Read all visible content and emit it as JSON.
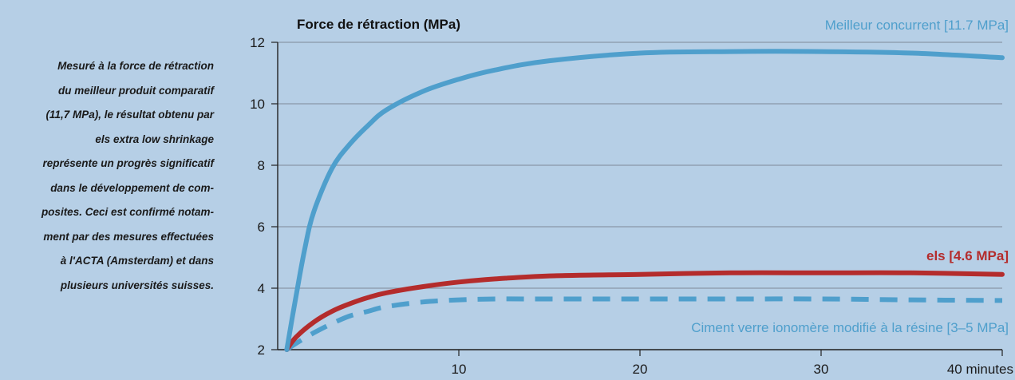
{
  "sidebar": {
    "lines": [
      "Mesuré à la force de rétraction",
      "du meilleur produit comparatif",
      "(11,7 MPa), le résultat obtenu par",
      "els extra low shrinkage",
      "représente un progrès significatif",
      "dans le développement de com-",
      "posites. Ceci est confirmé notam-",
      "ment par des mesures effectuées",
      "à l'ACTA (Amsterdam) et dans",
      "plusieurs universités suisses."
    ]
  },
  "chart_data": {
    "type": "line",
    "title": "",
    "ylabel": "Force de rétraction  (MPa)",
    "xlabel": "minutes",
    "xlim": [
      0,
      40
    ],
    "ylim": [
      2,
      12
    ],
    "x_ticks": [
      10,
      20,
      30,
      40
    ],
    "x_tick_labels": [
      "10",
      "20",
      "30",
      "40 minutes"
    ],
    "y_ticks": [
      2,
      4,
      6,
      8,
      10,
      12
    ],
    "y_tick_labels": [
      "2",
      "4",
      "6",
      "8",
      "10",
      "12"
    ],
    "grid": true,
    "series": [
      {
        "name": "Meilleur concurrent  [11.7 MPa]",
        "color": "#4f9fcc",
        "style": "solid",
        "x": [
          0.5,
          1,
          1.5,
          2,
          3,
          4,
          5,
          6,
          8,
          10,
          12,
          15,
          20,
          25,
          30,
          35,
          40
        ],
        "y": [
          2.0,
          3.7,
          5.3,
          6.5,
          7.9,
          8.7,
          9.3,
          9.8,
          10.4,
          10.8,
          11.1,
          11.4,
          11.65,
          11.7,
          11.7,
          11.65,
          11.5
        ]
      },
      {
        "name": "els [4.6 MPa]",
        "color": "#b42c2c",
        "style": "solid",
        "x": [
          0.5,
          1,
          2,
          3,
          4,
          5,
          6,
          8,
          10,
          12,
          15,
          20,
          25,
          30,
          35,
          40
        ],
        "y": [
          2.0,
          2.4,
          2.9,
          3.25,
          3.5,
          3.7,
          3.85,
          4.05,
          4.2,
          4.3,
          4.4,
          4.45,
          4.5,
          4.5,
          4.5,
          4.45
        ]
      },
      {
        "name": "Ciment verre ionomère modifié à la résine  [3–5 MPa]",
        "color": "#4f9fcc",
        "style": "dashed",
        "x": [
          0.5,
          1,
          2,
          3,
          4,
          5,
          6,
          8,
          10,
          12,
          15,
          20,
          25,
          30,
          35,
          40
        ],
        "y": [
          2.0,
          2.2,
          2.55,
          2.85,
          3.1,
          3.25,
          3.4,
          3.55,
          3.62,
          3.65,
          3.65,
          3.65,
          3.65,
          3.65,
          3.62,
          3.6
        ]
      }
    ]
  }
}
